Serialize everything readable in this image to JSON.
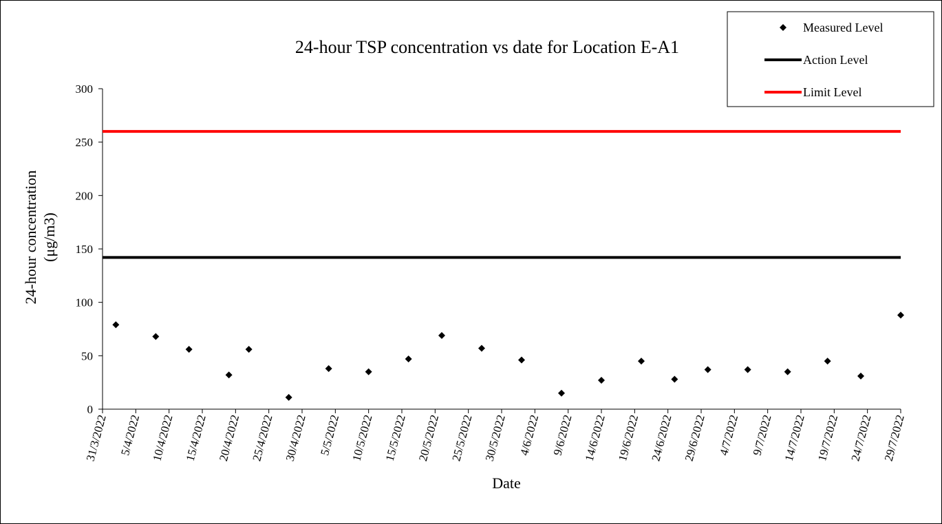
{
  "chart_data": {
    "type": "scatter",
    "title": "24-hour TSP concentration vs date for Location E-A1",
    "xlabel": "Date",
    "ylabel_lines": [
      "24-hour concentration",
      "(μg/m3)"
    ],
    "ylim": [
      0,
      300
    ],
    "y_ticks": [
      0,
      50,
      100,
      150,
      200,
      250,
      300
    ],
    "x_range": [
      "31/3/2022",
      "29/7/2022"
    ],
    "x_tick_labels": [
      "31/3/2022",
      "5/4/2022",
      "10/4/2022",
      "15/4/2022",
      "20/4/2022",
      "25/4/2022",
      "30/4/2022",
      "5/5/2022",
      "10/5/2022",
      "15/5/2022",
      "20/5/2022",
      "25/5/2022",
      "30/5/2022",
      "4/6/2022",
      "9/6/2022",
      "14/6/2022",
      "19/6/2022",
      "24/6/2022",
      "29/6/2022",
      "4/7/2022",
      "9/7/2022",
      "14/7/2022",
      "19/7/2022",
      "24/7/2022",
      "29/7/2022"
    ],
    "grid": false,
    "legend_position": "top-right",
    "series": [
      {
        "name": "Measured Level",
        "marker": "diamond",
        "color": "#000000",
        "points": [
          {
            "x": "2/4/2022",
            "y": 79
          },
          {
            "x": "8/4/2022",
            "y": 68
          },
          {
            "x": "13/4/2022",
            "y": 56
          },
          {
            "x": "19/4/2022",
            "y": 32
          },
          {
            "x": "22/4/2022",
            "y": 56
          },
          {
            "x": "28/4/2022",
            "y": 11
          },
          {
            "x": "4/5/2022",
            "y": 38
          },
          {
            "x": "10/5/2022",
            "y": 35
          },
          {
            "x": "16/5/2022",
            "y": 47
          },
          {
            "x": "21/5/2022",
            "y": 69
          },
          {
            "x": "27/5/2022",
            "y": 57
          },
          {
            "x": "2/6/2022",
            "y": 46
          },
          {
            "x": "8/6/2022",
            "y": 15
          },
          {
            "x": "14/6/2022",
            "y": 27
          },
          {
            "x": "20/6/2022",
            "y": 45
          },
          {
            "x": "25/6/2022",
            "y": 28
          },
          {
            "x": "30/6/2022",
            "y": 37
          },
          {
            "x": "6/7/2022",
            "y": 37
          },
          {
            "x": "12/7/2022",
            "y": 35
          },
          {
            "x": "18/7/2022",
            "y": 45
          },
          {
            "x": "23/7/2022",
            "y": 31
          },
          {
            "x": "29/7/2022",
            "y": 88
          }
        ]
      },
      {
        "name": "Action Level",
        "type": "line",
        "color": "#000000",
        "points": [
          {
            "x": "31/3/2022",
            "y": 142
          },
          {
            "x": "29/7/2022",
            "y": 142
          }
        ]
      },
      {
        "name": "Limit Level",
        "type": "line",
        "color": "#ff0000",
        "points": [
          {
            "x": "31/3/2022",
            "y": 260
          },
          {
            "x": "29/7/2022",
            "y": 260
          }
        ]
      }
    ]
  }
}
